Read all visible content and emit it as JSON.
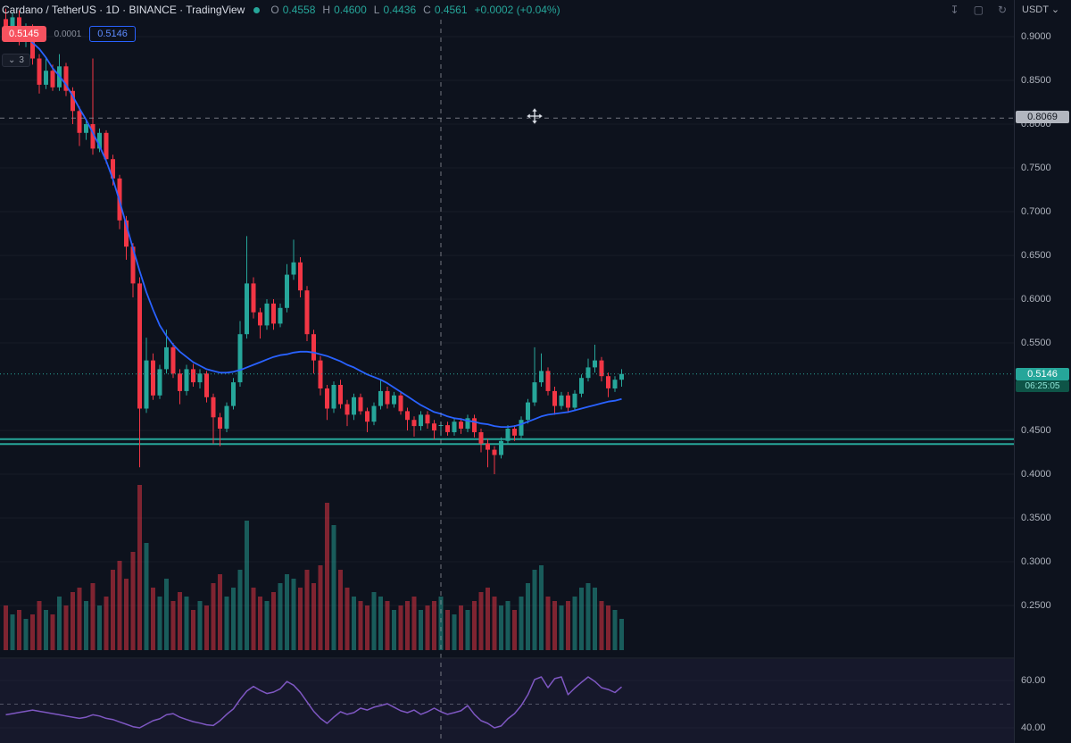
{
  "header": {
    "symbol_line": "Cardano / TetherUS · 1D · BINANCE · TradingView",
    "ohlc": {
      "o_label": "O",
      "o": "0.4558",
      "h_label": "H",
      "h": "0.4600",
      "l_label": "L",
      "l": "0.4436",
      "c_label": "C",
      "c": "0.4561",
      "change": "+0.0002 (+0.04%)"
    },
    "icons": {
      "download": "↧",
      "maximize": "▢",
      "refresh": "↻"
    }
  },
  "trade_panel": {
    "sell_price": "0.5145",
    "spread": "0.0001",
    "buy_price": "0.5146"
  },
  "indicator_toggle": {
    "chevron": "⌄",
    "count": "3"
  },
  "axis": {
    "currency_label": "USDT",
    "currency_caret": "⌄",
    "price_labels": [
      {
        "text": "0.9000",
        "price": 0.9
      },
      {
        "text": "0.8500",
        "price": 0.85
      },
      {
        "text": "0.8000",
        "price": 0.8
      },
      {
        "text": "0.7500",
        "price": 0.75
      },
      {
        "text": "0.7000",
        "price": 0.7
      },
      {
        "text": "0.6500",
        "price": 0.65
      },
      {
        "text": "0.6000",
        "price": 0.6
      },
      {
        "text": "0.5500",
        "price": 0.55
      },
      {
        "text": "0.4500",
        "price": 0.45
      },
      {
        "text": "0.4000",
        "price": 0.4
      },
      {
        "text": "0.3500",
        "price": 0.35
      },
      {
        "text": "0.3000",
        "price": 0.3
      },
      {
        "text": "0.2500",
        "price": 0.25
      }
    ],
    "crosshair_price_label": "0.8069",
    "last_price_label": "0.5146",
    "countdown": "06:25:05",
    "rsi_labels": [
      {
        "text": "60.00",
        "value": 60
      },
      {
        "text": "40.00",
        "value": 40
      }
    ]
  },
  "chart_data": {
    "type": "candlestick",
    "title": "Cardano / TetherUS",
    "exchange": "BINANCE",
    "timeframe": "1D",
    "price_range_visible": [
      0.24,
      0.92
    ],
    "rsi_range_visible": [
      34,
      69
    ],
    "legend_collapsed_count": 3,
    "last_price": 0.5146,
    "crosshair": {
      "bar_index": 65,
      "price": 0.8069
    },
    "hovered_bar_ohlc": {
      "o": 0.4558,
      "h": 0.46,
      "l": 0.4436,
      "c": 0.4561,
      "change": "+0.0002 (+0.04%)"
    },
    "horizontal_lines": [
      0.44,
      0.4345
    ],
    "rsi_midline": 50,
    "colors": {
      "up": "#26a69a",
      "down": "#f23645",
      "ema": "#2962ff",
      "rsi": "#7e57c2",
      "line": "#26a69a",
      "background": "#0d121d"
    },
    "candles": [
      [
        0.92,
        0.932,
        0.9,
        0.906
      ],
      [
        0.906,
        0.928,
        0.898,
        0.922
      ],
      [
        0.922,
        0.93,
        0.89,
        0.896
      ],
      [
        0.896,
        0.915,
        0.888,
        0.91
      ],
      [
        0.91,
        0.914,
        0.868,
        0.875
      ],
      [
        0.875,
        0.88,
        0.835,
        0.845
      ],
      [
        0.845,
        0.876,
        0.84,
        0.861
      ],
      [
        0.861,
        0.868,
        0.838,
        0.842
      ],
      [
        0.842,
        0.88,
        0.838,
        0.866
      ],
      [
        0.866,
        0.87,
        0.832,
        0.838
      ],
      [
        0.838,
        0.842,
        0.8,
        0.815
      ],
      [
        0.815,
        0.82,
        0.775,
        0.79
      ],
      [
        0.79,
        0.805,
        0.782,
        0.8
      ],
      [
        0.8,
        0.875,
        0.765,
        0.772
      ],
      [
        0.772,
        0.795,
        0.768,
        0.79
      ],
      [
        0.79,
        0.793,
        0.755,
        0.76
      ],
      [
        0.76,
        0.765,
        0.73,
        0.738
      ],
      [
        0.738,
        0.742,
        0.68,
        0.69
      ],
      [
        0.69,
        0.695,
        0.645,
        0.66
      ],
      [
        0.66,
        0.664,
        0.602,
        0.618
      ],
      [
        0.618,
        0.625,
        0.408,
        0.475
      ],
      [
        0.475,
        0.556,
        0.47,
        0.53
      ],
      [
        0.53,
        0.538,
        0.485,
        0.49
      ],
      [
        0.49,
        0.525,
        0.486,
        0.52
      ],
      [
        0.52,
        0.565,
        0.515,
        0.545
      ],
      [
        0.545,
        0.55,
        0.51,
        0.515
      ],
      [
        0.515,
        0.52,
        0.48,
        0.495
      ],
      [
        0.495,
        0.525,
        0.49,
        0.52
      ],
      [
        0.52,
        0.526,
        0.5,
        0.505
      ],
      [
        0.505,
        0.52,
        0.498,
        0.515
      ],
      [
        0.515,
        0.518,
        0.482,
        0.488
      ],
      [
        0.488,
        0.492,
        0.435,
        0.465
      ],
      [
        0.465,
        0.47,
        0.432,
        0.452
      ],
      [
        0.452,
        0.482,
        0.448,
        0.478
      ],
      [
        0.478,
        0.51,
        0.474,
        0.505
      ],
      [
        0.505,
        0.575,
        0.5,
        0.56
      ],
      [
        0.56,
        0.672,
        0.555,
        0.618
      ],
      [
        0.618,
        0.625,
        0.578,
        0.585
      ],
      [
        0.585,
        0.59,
        0.555,
        0.57
      ],
      [
        0.57,
        0.6,
        0.565,
        0.595
      ],
      [
        0.595,
        0.6,
        0.565,
        0.572
      ],
      [
        0.572,
        0.595,
        0.568,
        0.59
      ],
      [
        0.59,
        0.64,
        0.585,
        0.628
      ],
      [
        0.628,
        0.668,
        0.622,
        0.642
      ],
      [
        0.642,
        0.648,
        0.602,
        0.61
      ],
      [
        0.61,
        0.615,
        0.552,
        0.56
      ],
      [
        0.56,
        0.565,
        0.515,
        0.53
      ],
      [
        0.53,
        0.535,
        0.49,
        0.498
      ],
      [
        0.498,
        0.502,
        0.462,
        0.475
      ],
      [
        0.475,
        0.506,
        0.47,
        0.502
      ],
      [
        0.502,
        0.508,
        0.475,
        0.48
      ],
      [
        0.48,
        0.485,
        0.455,
        0.468
      ],
      [
        0.468,
        0.492,
        0.462,
        0.488
      ],
      [
        0.488,
        0.492,
        0.468,
        0.472
      ],
      [
        0.472,
        0.476,
        0.448,
        0.46
      ],
      [
        0.46,
        0.482,
        0.456,
        0.478
      ],
      [
        0.478,
        0.508,
        0.474,
        0.495
      ],
      [
        0.495,
        0.5,
        0.475,
        0.48
      ],
      [
        0.48,
        0.494,
        0.476,
        0.49
      ],
      [
        0.49,
        0.494,
        0.468,
        0.472
      ],
      [
        0.472,
        0.476,
        0.45,
        0.462
      ],
      [
        0.462,
        0.466,
        0.443,
        0.455
      ],
      [
        0.455,
        0.472,
        0.45,
        0.468
      ],
      [
        0.468,
        0.472,
        0.452,
        0.458
      ],
      [
        0.458,
        0.462,
        0.44,
        0.45
      ],
      [
        0.4558,
        0.46,
        0.4436,
        0.4561
      ],
      [
        0.456,
        0.46,
        0.444,
        0.448
      ],
      [
        0.448,
        0.464,
        0.444,
        0.46
      ],
      [
        0.46,
        0.464,
        0.446,
        0.452
      ],
      [
        0.452,
        0.468,
        0.448,
        0.464
      ],
      [
        0.464,
        0.468,
        0.442,
        0.448
      ],
      [
        0.448,
        0.452,
        0.425,
        0.435
      ],
      [
        0.435,
        0.44,
        0.408,
        0.428
      ],
      [
        0.428,
        0.432,
        0.4,
        0.422
      ],
      [
        0.422,
        0.442,
        0.418,
        0.438
      ],
      [
        0.438,
        0.456,
        0.434,
        0.452
      ],
      [
        0.452,
        0.456,
        0.438,
        0.444
      ],
      [
        0.444,
        0.466,
        0.44,
        0.462
      ],
      [
        0.462,
        0.486,
        0.458,
        0.482
      ],
      [
        0.482,
        0.545,
        0.478,
        0.505
      ],
      [
        0.505,
        0.538,
        0.5,
        0.518
      ],
      [
        0.518,
        0.522,
        0.49,
        0.495
      ],
      [
        0.495,
        0.5,
        0.468,
        0.478
      ],
      [
        0.478,
        0.494,
        0.474,
        0.49
      ],
      [
        0.49,
        0.494,
        0.47,
        0.476
      ],
      [
        0.476,
        0.496,
        0.472,
        0.492
      ],
      [
        0.492,
        0.514,
        0.488,
        0.51
      ],
      [
        0.51,
        0.532,
        0.506,
        0.522
      ],
      [
        0.522,
        0.548,
        0.516,
        0.53
      ],
      [
        0.53,
        0.534,
        0.506,
        0.512
      ],
      [
        0.512,
        0.516,
        0.488,
        0.498
      ],
      [
        0.498,
        0.512,
        0.494,
        0.508
      ],
      [
        0.508,
        0.52,
        0.5,
        0.5146
      ]
    ],
    "volume": [
      50,
      40,
      45,
      35,
      40,
      55,
      45,
      40,
      60,
      50,
      65,
      70,
      55,
      75,
      50,
      60,
      90,
      100,
      80,
      110,
      185,
      120,
      70,
      60,
      80,
      55,
      65,
      60,
      45,
      55,
      50,
      75,
      85,
      60,
      70,
      90,
      145,
      70,
      60,
      55,
      65,
      75,
      85,
      80,
      70,
      90,
      75,
      95,
      165,
      140,
      90,
      70,
      60,
      55,
      50,
      65,
      60,
      55,
      45,
      50,
      55,
      60,
      45,
      50,
      55,
      60,
      45,
      40,
      50,
      45,
      55,
      65,
      70,
      60,
      50,
      55,
      45,
      60,
      75,
      90,
      95,
      60,
      55,
      50,
      55,
      60,
      70,
      75,
      70,
      55,
      50,
      45,
      35
    ],
    "ema": [
      null,
      null,
      0.905,
      0.9,
      0.893,
      0.886,
      0.876,
      0.864,
      0.855,
      0.845,
      0.832,
      0.818,
      0.805,
      0.79,
      0.775,
      0.758,
      0.737,
      0.712,
      0.685,
      0.658,
      0.632,
      0.608,
      0.588,
      0.57,
      0.558,
      0.548,
      0.54,
      0.534,
      0.528,
      0.524,
      0.52,
      0.518,
      0.516,
      0.516,
      0.517,
      0.519,
      0.522,
      0.525,
      0.528,
      0.531,
      0.534,
      0.536,
      0.537,
      0.539,
      0.54,
      0.54,
      0.539,
      0.537,
      0.535,
      0.532,
      0.529,
      0.525,
      0.522,
      0.518,
      0.514,
      0.511,
      0.508,
      0.504,
      0.499,
      0.494,
      0.489,
      0.484,
      0.479,
      0.475,
      0.471,
      0.469,
      0.466,
      0.464,
      0.463,
      0.461,
      0.46,
      0.458,
      0.457,
      0.455,
      0.454,
      0.454,
      0.455,
      0.457,
      0.46,
      0.463,
      0.466,
      0.468,
      0.469,
      0.47,
      0.471,
      0.473,
      0.475,
      0.477,
      0.479,
      0.481,
      0.483,
      0.484,
      0.486
    ],
    "rsi": [
      45.5,
      46,
      46.5,
      47,
      47.5,
      47,
      46.5,
      46,
      45.5,
      45,
      44.5,
      44,
      44.5,
      45.5,
      45,
      44,
      43.5,
      42.5,
      41.5,
      40.5,
      40,
      41.5,
      43,
      43.8,
      45.5,
      46,
      44.5,
      43.5,
      42.6,
      42,
      41.3,
      41,
      43,
      45.7,
      48,
      52,
      55.5,
      57.5,
      55.8,
      54.5,
      55.1,
      56.5,
      59.6,
      58,
      55,
      51,
      47,
      44,
      41.9,
      44.5,
      46.8,
      45.7,
      46.4,
      48.3,
      47.5,
      48.7,
      49.4,
      50.2,
      48.7,
      47.2,
      46.4,
      47.5,
      45.7,
      46.8,
      48.3,
      46.8,
      45.7,
      46.4,
      47.2,
      49.4,
      45.7,
      43,
      41.9,
      40,
      40.8,
      43.8,
      46,
      49.4,
      54,
      60.4,
      61.5,
      57,
      60.8,
      61.5,
      54,
      56.8,
      59.2,
      61.5,
      59.6,
      57,
      56.2,
      54.9,
      57.3
    ]
  }
}
